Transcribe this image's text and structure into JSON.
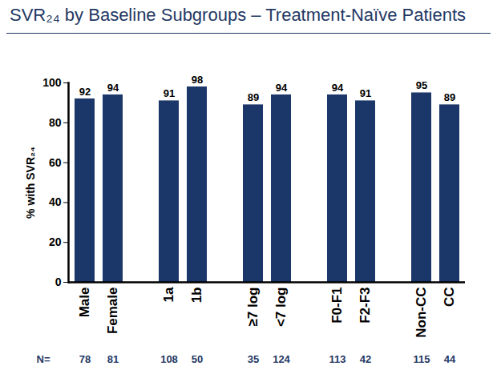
{
  "chart_data": {
    "type": "bar",
    "title": "SVR₂₄ by Baseline Subgroups – Treatment-Naïve Patients",
    "y_label": "% with SVR₂₄",
    "categories": [
      "Male",
      "Female",
      null,
      "1a",
      "1b",
      null,
      "≥7 log",
      "<7 log",
      null,
      "F0-F1",
      "F2-F3",
      null,
      "Non-CC",
      "CC"
    ],
    "values": [
      92,
      94,
      null,
      91,
      98,
      null,
      89,
      94,
      null,
      94,
      91,
      null,
      95,
      89
    ],
    "n_label": "N=",
    "n": [
      78,
      81,
      null,
      108,
      50,
      null,
      35,
      124,
      null,
      113,
      42,
      null,
      115,
      44
    ],
    "color": "#1b3668",
    "ylim": [
      0,
      100
    ],
    "yticks": [
      0,
      20,
      40,
      60,
      80,
      100
    ],
    "grid": false,
    "data_labels": true
  }
}
